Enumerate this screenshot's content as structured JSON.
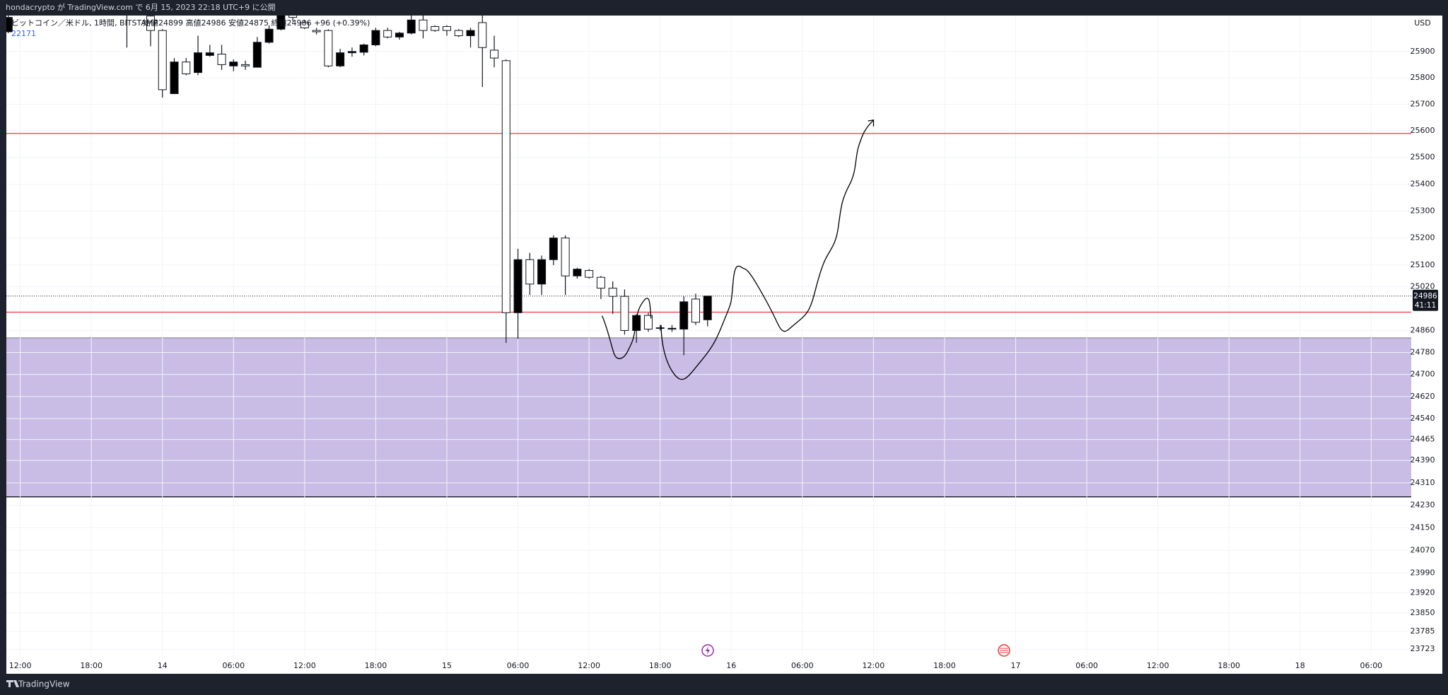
{
  "header": {
    "title": "hondacrypto が TradingView.com で 6月 15, 2023 22:18 UTC+9 に公開"
  },
  "footer": {
    "brand": "TradingView"
  },
  "chart_data": {
    "type": "candlestick",
    "symbol": "ビットコイン／米ドル, 1時間, BITSTAMP",
    "ohlc_legend": "始値24899 高値24986 安値24875 終値24986 +96 (+0.39%)",
    "volume_legend": "22171",
    "y_axis_label": "USD",
    "log_scale": true,
    "grid": true,
    "up_color": "#000000",
    "down_color": "#ffffff",
    "x": [
      -13,
      -3,
      -1,
      0,
      1,
      2,
      3,
      4,
      5,
      6,
      7,
      8,
      9,
      10,
      11,
      12,
      13,
      14,
      15,
      16,
      17,
      18,
      19,
      20,
      21,
      22,
      23,
      24,
      25,
      26,
      27,
      28,
      29,
      30,
      31,
      32,
      33,
      34,
      35,
      36,
      37,
      38,
      39,
      40,
      41,
      42,
      43,
      44,
      45,
      46
    ],
    "open": [
      25975,
      26060,
      26035,
      25980,
      25740,
      25860,
      25820,
      25885,
      25890,
      25845,
      25850,
      25840,
      25935,
      25985,
      26040,
      26010,
      25980,
      25980,
      25845,
      25895,
      25897,
      25925,
      25980,
      25955,
      25970,
      26020,
      25995,
      25995,
      25980,
      25960,
      26010,
      25905,
      25865,
      24925,
      25120,
      25030,
      25120,
      25200,
      25060,
      25080,
      25055,
      25015,
      24985,
      24860,
      24915,
      24870,
      24865,
      24865,
      24975,
      24899
    ],
    "high": [
      26040,
      26080,
      26060,
      25985,
      25875,
      25875,
      25960,
      25925,
      25925,
      25870,
      25865,
      25955,
      26000,
      26060,
      26050,
      26020,
      25990,
      25985,
      25910,
      25915,
      25930,
      25990,
      25990,
      25975,
      26040,
      26040,
      26000,
      26000,
      25985,
      25990,
      26040,
      25960,
      25870,
      25160,
      25145,
      25135,
      25210,
      25210,
      25090,
      25085,
      25060,
      25040,
      25010,
      24920,
      24925,
      24880,
      24880,
      24985,
      24995,
      24986
    ],
    "low": [
      25970,
      25915,
      25920,
      25725,
      25740,
      25810,
      25810,
      25880,
      25830,
      25825,
      25830,
      25840,
      25930,
      25980,
      26015,
      25985,
      25965,
      25840,
      25840,
      25880,
      25885,
      25920,
      25950,
      25945,
      25965,
      25950,
      25975,
      25960,
      25955,
      25915,
      25765,
      25840,
      24815,
      24830,
      24990,
      24990,
      25100,
      24990,
      25050,
      25050,
      24975,
      24920,
      24845,
      24815,
      24855,
      24860,
      24855,
      24770,
      24880,
      24875
    ],
    "close": [
      26030,
      26040,
      25980,
      25755,
      25860,
      25815,
      25895,
      25895,
      25850,
      25860,
      25845,
      25935,
      25985,
      26040,
      26030,
      25990,
      25975,
      25845,
      25895,
      25900,
      25925,
      25980,
      25955,
      25970,
      26020,
      25980,
      25980,
      25980,
      25960,
      25980,
      25915,
      25875,
      24925,
      25120,
      25030,
      25120,
      25200,
      25060,
      25085,
      25055,
      25015,
      24985,
      24860,
      24915,
      24865,
      24868,
      24868,
      24965,
      24890,
      24986
    ],
    "xlim": [
      -13.17,
      105.38
    ],
    "ylim": [
      23694,
      26037
    ],
    "xticks": [
      {
        "value": -12,
        "label": "12:00"
      },
      {
        "value": -6,
        "label": "18:00"
      },
      {
        "value": 0,
        "label": "14"
      },
      {
        "value": 6,
        "label": "06:00"
      },
      {
        "value": 12,
        "label": "12:00"
      },
      {
        "value": 18,
        "label": "18:00"
      },
      {
        "value": 24,
        "label": "15"
      },
      {
        "value": 30,
        "label": "06:00"
      },
      {
        "value": 36,
        "label": "12:00"
      },
      {
        "value": 42,
        "label": "18:00"
      },
      {
        "value": 48,
        "label": "16"
      },
      {
        "value": 54,
        "label": "06:00"
      },
      {
        "value": 60,
        "label": "12:00"
      },
      {
        "value": 66,
        "label": "18:00"
      },
      {
        "value": 72,
        "label": "17"
      },
      {
        "value": 78,
        "label": "06:00"
      },
      {
        "value": 84,
        "label": "12:00"
      },
      {
        "value": 90,
        "label": "18:00"
      },
      {
        "value": 96,
        "label": "18"
      },
      {
        "value": 102,
        "label": "06:00"
      }
    ],
    "yticks": [
      25900,
      25800,
      25700,
      25600,
      25500,
      25400,
      25300,
      25200,
      25100,
      25020,
      24860,
      24780,
      24700,
      24620,
      24540,
      24465,
      24390,
      24310,
      24230,
      24150,
      24070,
      23990,
      23920,
      23850,
      23785,
      23723
    ],
    "hlines": [
      {
        "value": 25590,
        "color": "#f23645"
      },
      {
        "value": 24927,
        "color": "#f23645"
      }
    ],
    "zone": {
      "from": 24260,
      "to": 24833,
      "color": "#c9bde6"
    },
    "last_price": 24986,
    "countdown": "41:11"
  }
}
